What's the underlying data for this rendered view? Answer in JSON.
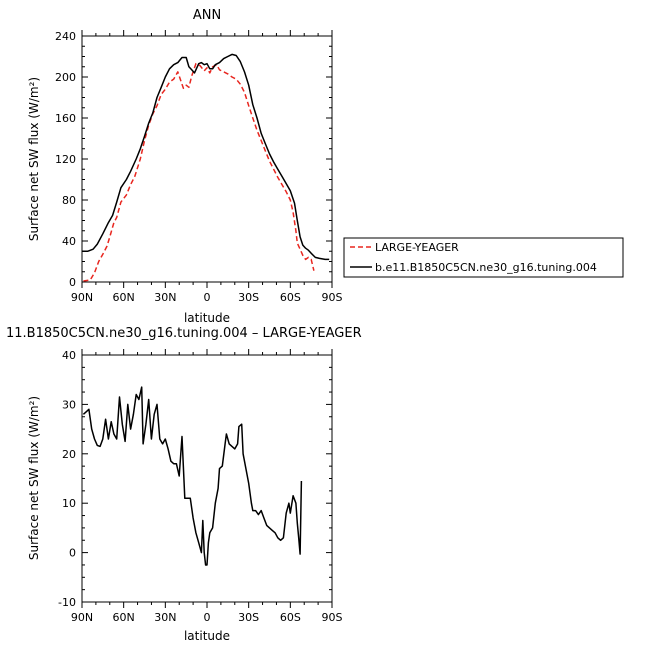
{
  "chart_data": [
    {
      "type": "line",
      "title": "ANN",
      "xlabel": "latitude",
      "ylabel": "Surface net SW flux (W/m²)",
      "xlim": [
        -90,
        90
      ],
      "ylim": [
        0,
        240
      ],
      "x_tick_values": [
        -90,
        -60,
        -30,
        0,
        30,
        60,
        90
      ],
      "x_tick_labels": [
        "90N",
        "60N",
        "30N",
        "0",
        "30S",
        "60S",
        "90S"
      ],
      "y_ticks": [
        0,
        40,
        80,
        120,
        160,
        200,
        240
      ],
      "grid": false,
      "legend": {
        "placement": "right",
        "entries": [
          "LARGE-YEAGER",
          "b.e11.B1850C5CN.ne30_g16.tuning.004"
        ]
      },
      "series": [
        {
          "name": "LARGE-YEAGER",
          "color": "#e8261f",
          "dash": "dashed",
          "points": [
            [
              -89,
              1
            ],
            [
              -84,
              2
            ],
            [
              -81,
              9
            ],
            [
              -78,
              20
            ],
            [
              -75,
              27
            ],
            [
              -72,
              35
            ],
            [
              -70,
              44
            ],
            [
              -67,
              58
            ],
            [
              -65,
              63
            ],
            [
              -62,
              78
            ],
            [
              -58,
              85
            ],
            [
              -55,
              95
            ],
            [
              -52,
              103
            ],
            [
              -48,
              120
            ],
            [
              -45,
              138
            ],
            [
              -42,
              153
            ],
            [
              -39,
              164
            ],
            [
              -36,
              172
            ],
            [
              -33,
              183
            ],
            [
              -30,
              188
            ],
            [
              -27,
              195
            ],
            [
              -24,
              198
            ],
            [
              -21,
              205
            ],
            [
              -19,
              197
            ],
            [
              -17,
              189
            ],
            [
              -15,
              192
            ],
            [
              -13,
              190
            ],
            [
              -11,
              201
            ],
            [
              -8,
              213
            ],
            [
              -5,
              211
            ],
            [
              -2,
              206
            ],
            [
              0,
              209
            ],
            [
              2,
              204
            ],
            [
              4,
              210
            ],
            [
              7,
              212
            ],
            [
              9,
              207
            ],
            [
              12,
              205
            ],
            [
              15,
              203
            ],
            [
              18,
              200
            ],
            [
              21,
              198
            ],
            [
              24,
              193
            ],
            [
              27,
              185
            ],
            [
              30,
              172
            ],
            [
              33,
              160
            ],
            [
              36,
              148
            ],
            [
              39,
              138
            ],
            [
              42,
              128
            ],
            [
              45,
              118
            ],
            [
              48,
              110
            ],
            [
              51,
              102
            ],
            [
              54,
              95
            ],
            [
              57,
              88
            ],
            [
              60,
              80
            ],
            [
              62,
              68
            ],
            [
              64,
              50
            ],
            [
              65,
              38
            ],
            [
              67,
              32
            ],
            [
              69,
              26
            ],
            [
              71,
              22
            ],
            [
              73,
              24
            ],
            [
              75,
              22
            ],
            [
              77,
              11
            ]
          ]
        },
        {
          "name": "b.e11.B1850C5CN.ne30_g16.tuning.004",
          "color": "#000000",
          "dash": "solid",
          "points": [
            [
              -90,
              30
            ],
            [
              -86,
              30
            ],
            [
              -82,
              32
            ],
            [
              -79,
              37
            ],
            [
              -75,
              47
            ],
            [
              -71,
              58
            ],
            [
              -68,
              65
            ],
            [
              -65,
              78
            ],
            [
              -62,
              92
            ],
            [
              -58,
              100
            ],
            [
              -55,
              108
            ],
            [
              -51,
              120
            ],
            [
              -48,
              130
            ],
            [
              -45,
              142
            ],
            [
              -42,
              155
            ],
            [
              -39,
              165
            ],
            [
              -36,
              180
            ],
            [
              -33,
              190
            ],
            [
              -30,
              200
            ],
            [
              -27,
              208
            ],
            [
              -24,
              212
            ],
            [
              -21,
              214
            ],
            [
              -18,
              219
            ],
            [
              -15,
              219
            ],
            [
              -13,
              210
            ],
            [
              -11,
              207
            ],
            [
              -9,
              204
            ],
            [
              -6,
              213
            ],
            [
              -4,
              214
            ],
            [
              -2,
              212
            ],
            [
              0,
              213
            ],
            [
              2,
              208
            ],
            [
              4,
              208
            ],
            [
              6,
              212
            ],
            [
              9,
              214
            ],
            [
              12,
              218
            ],
            [
              15,
              220
            ],
            [
              18,
              222
            ],
            [
              21,
              221
            ],
            [
              24,
              215
            ],
            [
              27,
              205
            ],
            [
              30,
              192
            ],
            [
              33,
              173
            ],
            [
              36,
              160
            ],
            [
              39,
              145
            ],
            [
              42,
              135
            ],
            [
              45,
              125
            ],
            [
              48,
              117
            ],
            [
              51,
              110
            ],
            [
              54,
              103
            ],
            [
              57,
              96
            ],
            [
              60,
              89
            ],
            [
              63,
              77
            ],
            [
              65,
              60
            ],
            [
              67,
              44
            ],
            [
              69,
              36
            ],
            [
              71,
              33
            ],
            [
              73,
              31
            ],
            [
              75,
              28
            ],
            [
              78,
              24
            ],
            [
              81,
              23
            ],
            [
              85,
              22
            ],
            [
              88,
              22
            ]
          ]
        }
      ]
    },
    {
      "type": "line",
      "title": "11.B1850C5CN.ne30_g16.tuning.004 – LARGE-YEAGER",
      "xlabel": "latitude",
      "ylabel": "Surface net SW flux (W/m²)",
      "xlim": [
        -90,
        90
      ],
      "ylim": [
        -10,
        40
      ],
      "x_tick_values": [
        -90,
        -60,
        -30,
        0,
        30,
        60,
        90
      ],
      "x_tick_labels": [
        "90N",
        "60N",
        "30N",
        "0",
        "30S",
        "60S",
        "90S"
      ],
      "y_ticks": [
        -10,
        0,
        10,
        20,
        30,
        40
      ],
      "grid": false,
      "series": [
        {
          "color": "#000000",
          "dash": "solid",
          "points": [
            [
              -89,
              28
            ],
            [
              -87,
              28.5
            ],
            [
              -85,
              29
            ],
            [
              -83,
              25
            ],
            [
              -81,
              23
            ],
            [
              -79,
              21.7
            ],
            [
              -77,
              21.5
            ],
            [
              -75,
              23
            ],
            [
              -73,
              27
            ],
            [
              -71,
              23
            ],
            [
              -69,
              26.5
            ],
            [
              -67,
              24
            ],
            [
              -65,
              23
            ],
            [
              -63,
              31.5
            ],
            [
              -61,
              26
            ],
            [
              -59,
              22.5
            ],
            [
              -57,
              30
            ],
            [
              -55,
              25
            ],
            [
              -53,
              28
            ],
            [
              -51,
              32
            ],
            [
              -49,
              31
            ],
            [
              -47,
              33.5
            ],
            [
              -46,
              22
            ],
            [
              -44,
              26
            ],
            [
              -42,
              31
            ],
            [
              -40,
              23
            ],
            [
              -38,
              28
            ],
            [
              -36,
              30
            ],
            [
              -34,
              23
            ],
            [
              -32,
              22
            ],
            [
              -30,
              23
            ],
            [
              -28,
              21
            ],
            [
              -26,
              18.5
            ],
            [
              -24,
              18
            ],
            [
              -22,
              18
            ],
            [
              -20,
              15.5
            ],
            [
              -18,
              23.5
            ],
            [
              -16,
              11
            ],
            [
              -14,
              11
            ],
            [
              -12,
              11
            ],
            [
              -10,
              7
            ],
            [
              -8,
              4
            ],
            [
              -6,
              2
            ],
            [
              -4,
              0
            ],
            [
              -3,
              6.5
            ],
            [
              -2,
              0
            ],
            [
              -1,
              -2.5
            ],
            [
              0,
              -2.5
            ],
            [
              1,
              2
            ],
            [
              2,
              4
            ],
            [
              4,
              5
            ],
            [
              6,
              10
            ],
            [
              8,
              13
            ],
            [
              9,
              17
            ],
            [
              11,
              17.5
            ],
            [
              13,
              22
            ],
            [
              14,
              24
            ],
            [
              16,
              22
            ],
            [
              18,
              21.5
            ],
            [
              20,
              21
            ],
            [
              22,
              22
            ],
            [
              23,
              25.5
            ],
            [
              25,
              26
            ],
            [
              26,
              20
            ],
            [
              28,
              17
            ],
            [
              30,
              14
            ],
            [
              32,
              10
            ],
            [
              33,
              8.5
            ],
            [
              35,
              8.5
            ],
            [
              37,
              7.7
            ],
            [
              39,
              8.5
            ],
            [
              41,
              7
            ],
            [
              43,
              5.5
            ],
            [
              45,
              5
            ],
            [
              47,
              4.5
            ],
            [
              49,
              4
            ],
            [
              51,
              3
            ],
            [
              53,
              2.5
            ],
            [
              55,
              3
            ],
            [
              57,
              8
            ],
            [
              59,
              10
            ],
            [
              60,
              8
            ],
            [
              62,
              11.5
            ],
            [
              64,
              10
            ],
            [
              65,
              6
            ],
            [
              66,
              3
            ],
            [
              67,
              -0.3
            ],
            [
              68,
              14.5
            ]
          ]
        }
      ]
    }
  ]
}
